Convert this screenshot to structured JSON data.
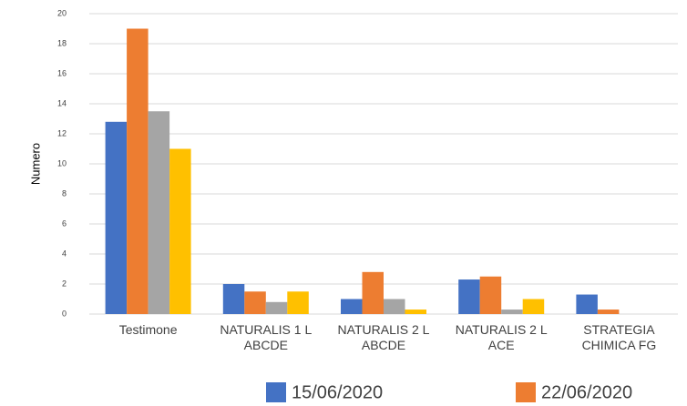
{
  "chart_data": {
    "type": "bar",
    "y_label": "Numero",
    "categories": [
      [
        "Testimone"
      ],
      [
        "NATURALIS 1 L",
        "ABCDE"
      ],
      [
        "NATURALIS 2 L",
        "ABCDE"
      ],
      [
        "NATURALIS 2 L",
        "ACE"
      ],
      [
        "STRATEGIA",
        "CHIMICA FG"
      ]
    ],
    "series": [
      {
        "name": "15/06/2020",
        "color": "#4472c4",
        "values": [
          12.8,
          2,
          1,
          2.3,
          1.3
        ]
      },
      {
        "name": "22/06/2020",
        "color": "#ed7d31",
        "values": [
          19,
          1.5,
          2.8,
          2.5,
          0.3
        ]
      },
      {
        "color": "#a5a5a5",
        "values": [
          13.5,
          0.8,
          1,
          0.3,
          0
        ]
      },
      {
        "color": "#ffc000",
        "values": [
          11,
          1.5,
          0.3,
          1,
          0
        ]
      }
    ],
    "ylim": [
      0,
      20
    ],
    "yticks": [
      0,
      2,
      4,
      6,
      8,
      10,
      12,
      14,
      16,
      18,
      20
    ],
    "grid": true
  }
}
